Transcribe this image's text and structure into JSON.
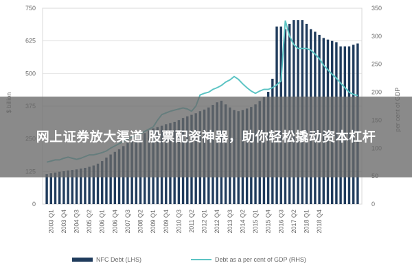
{
  "overlay": {
    "headline": "网上证券放大渠道 股票配资神器，助你轻松撬动资本杠杆"
  },
  "chart_data": {
    "type": "bar+line",
    "left_axis": {
      "label": "$ billion",
      "min": 0,
      "max": 750,
      "ticks": [
        0,
        125,
        250,
        375,
        500,
        625,
        750
      ]
    },
    "right_axis": {
      "label": "per cent of GDP",
      "min": 0,
      "max": 350,
      "ticks": [
        0,
        50,
        100,
        150,
        200,
        250,
        300,
        350
      ]
    },
    "x_tick_labels": [
      "2003 Q1",
      "2003 Q4",
      "2004 Q3",
      "2005 Q2",
      "2006 Q1",
      "2006 Q4",
      "2007 Q3",
      "2008 Q2",
      "2009 Q1",
      "2009 Q4",
      "2010 Q3",
      "2011 Q2",
      "2012 Q1",
      "2012 Q4",
      "2013 Q3",
      "2014 Q2",
      "2015 Q1",
      "2015 Q4",
      "2016 Q3",
      "2017 Q2",
      "2018 Q1",
      "2018 Q4"
    ],
    "bar_series": {
      "name": "NFC Debt (LHS)",
      "color": "#1f3b5c",
      "values": [
        115,
        118,
        121,
        124,
        126,
        129,
        131,
        133,
        136,
        139,
        143,
        148,
        155,
        165,
        178,
        190,
        200,
        210,
        222,
        234,
        245,
        252,
        262,
        272,
        282,
        290,
        295,
        300,
        306,
        310,
        315,
        322,
        330,
        336,
        342,
        348,
        356,
        362,
        370,
        380,
        390,
        396,
        382,
        370,
        360,
        356,
        360,
        366,
        372,
        382,
        395,
        410,
        430,
        480,
        680,
        680,
        670,
        690,
        705,
        705,
        705,
        690,
        670,
        660,
        648,
        636,
        630,
        625,
        620,
        604,
        604,
        604,
        610,
        615
      ]
    },
    "line_series": {
      "name": "Debt as a per cent of GDP (RHS)",
      "color": "#5cc4c4",
      "values": [
        75,
        77,
        79,
        79,
        82,
        84,
        82,
        80,
        82,
        85,
        88,
        88,
        90,
        92,
        95,
        100,
        104,
        108,
        112,
        116,
        120,
        123,
        126,
        130,
        134,
        138,
        150,
        160,
        163,
        166,
        168,
        170,
        172,
        170,
        166,
        175,
        195,
        198,
        200,
        205,
        208,
        212,
        218,
        222,
        228,
        223,
        215,
        208,
        202,
        198,
        202,
        205,
        205,
        208,
        213,
        220,
        328,
        300,
        285,
        278,
        278,
        278,
        275,
        268,
        260,
        248,
        240,
        232,
        225,
        216,
        208,
        200,
        196,
        194
      ]
    }
  }
}
